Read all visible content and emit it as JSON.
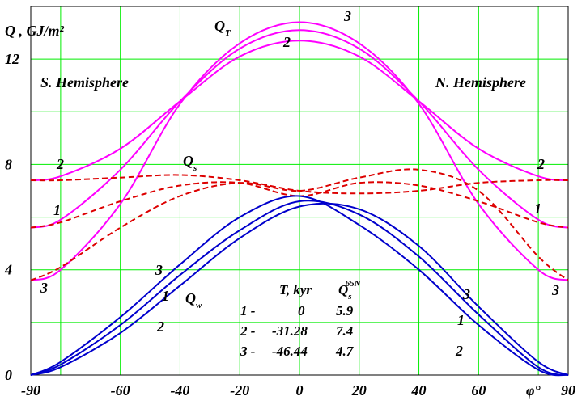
{
  "chart_data": {
    "type": "line",
    "ylabel": "Q , GJ/m²",
    "xlabel": "φ°",
    "xlim": [
      -90,
      90
    ],
    "ylim": [
      0,
      14
    ],
    "x_ticks": [
      -90,
      -60,
      -40,
      -20,
      0,
      20,
      40,
      60,
      90
    ],
    "y_ticks": [
      0,
      4,
      8,
      12
    ],
    "x_grid": [
      -80,
      -60,
      -40,
      -20,
      0,
      20,
      40,
      60,
      80
    ],
    "y_grid": [
      2,
      4,
      6,
      8,
      10,
      12
    ],
    "grid": true,
    "region_labels": {
      "south": "S. Hemisphere",
      "north": "N. Hemisphere"
    },
    "group_labels": {
      "QT": {
        "main": "Q",
        "sub": "T"
      },
      "Qs": {
        "main": "Q",
        "sub": "s"
      },
      "Qw": {
        "main": "Q",
        "sub": "w"
      }
    },
    "colors": {
      "QT": "#ff00ff",
      "Qs": "#dd0000",
      "Qw": "#0000cc",
      "grid": "#00ee00"
    },
    "groups": [
      {
        "key": "QT",
        "style": "solid",
        "series": [
          {
            "name": "1",
            "x": [
              -90,
              -80,
              -60,
              -40,
              -20,
              0,
              20,
              40,
              60,
              80,
              90
            ],
            "y": [
              5.6,
              5.9,
              7.8,
              10.4,
              12.4,
              13.1,
              12.4,
              10.4,
              7.8,
              5.9,
              5.6
            ]
          },
          {
            "name": "2",
            "x": [
              -90,
              -80,
              -60,
              -40,
              -20,
              0,
              20,
              40,
              60,
              80,
              90
            ],
            "y": [
              7.4,
              7.55,
              8.6,
              10.4,
              12.1,
              12.7,
              12.1,
              10.4,
              8.6,
              7.55,
              7.4
            ]
          },
          {
            "name": "3",
            "x": [
              -90,
              -80,
              -60,
              -40,
              -20,
              0,
              20,
              40,
              60,
              80,
              90
            ],
            "y": [
              3.6,
              4.0,
              6.5,
              10.3,
              12.6,
              13.4,
              12.6,
              10.3,
              6.5,
              4.0,
              3.6
            ]
          }
        ]
      },
      {
        "key": "Qs",
        "style": "dashed",
        "series": [
          {
            "name": "1",
            "x": [
              -90,
              -80,
              -60,
              -40,
              -20,
              0,
              20,
              40,
              60,
              80,
              90
            ],
            "y": [
              5.6,
              5.8,
              6.6,
              7.2,
              7.3,
              6.8,
              7.3,
              7.2,
              6.6,
              5.8,
              5.6
            ]
          },
          {
            "name": "2",
            "x": [
              -90,
              -80,
              -60,
              -40,
              -20,
              0,
              20,
              40,
              60,
              80,
              90
            ],
            "y": [
              7.4,
              7.4,
              7.5,
              7.6,
              7.4,
              7.0,
              6.9,
              7.0,
              7.3,
              7.4,
              7.4
            ]
          },
          {
            "name": "3",
            "x": [
              -90,
              -80,
              -60,
              -40,
              -20,
              0,
              20,
              40,
              60,
              80,
              90
            ],
            "y": [
              3.6,
              4.1,
              5.6,
              6.8,
              7.3,
              7.0,
              7.5,
              7.8,
              7.0,
              4.5,
              3.6
            ]
          }
        ]
      },
      {
        "key": "Qw",
        "style": "solid",
        "series": [
          {
            "name": "1",
            "x": [
              -90,
              -80,
              -60,
              -40,
              -20,
              0,
              20,
              40,
              60,
              80,
              90
            ],
            "y": [
              0,
              0.4,
              1.9,
              3.8,
              5.5,
              6.6,
              6.1,
              4.5,
              2.3,
              0.3,
              0
            ]
          },
          {
            "name": "2",
            "x": [
              -90,
              -80,
              -60,
              -40,
              -20,
              0,
              20,
              40,
              60,
              80,
              90
            ],
            "y": [
              0,
              0.3,
              1.6,
              3.4,
              5.2,
              6.4,
              6.3,
              4.9,
              2.6,
              0.5,
              0
            ]
          },
          {
            "name": "3",
            "x": [
              -90,
              -80,
              -60,
              -40,
              -20,
              0,
              20,
              40,
              60,
              80,
              90
            ],
            "y": [
              0,
              0.5,
              2.2,
              4.2,
              6.0,
              6.8,
              5.7,
              4.0,
              1.9,
              0.2,
              0
            ]
          }
        ]
      }
    ],
    "legend_table": {
      "headers": [
        "T, kyr",
        "Q",
        "s",
        "65N"
      ],
      "rows": [
        {
          "id": "1 -",
          "T": "0",
          "Q": "5.9"
        },
        {
          "id": "2 -",
          "T": "-31.28",
          "Q": "7.4"
        },
        {
          "id": "3 -",
          "T": "-46.44",
          "Q": "4.7"
        }
      ]
    }
  }
}
